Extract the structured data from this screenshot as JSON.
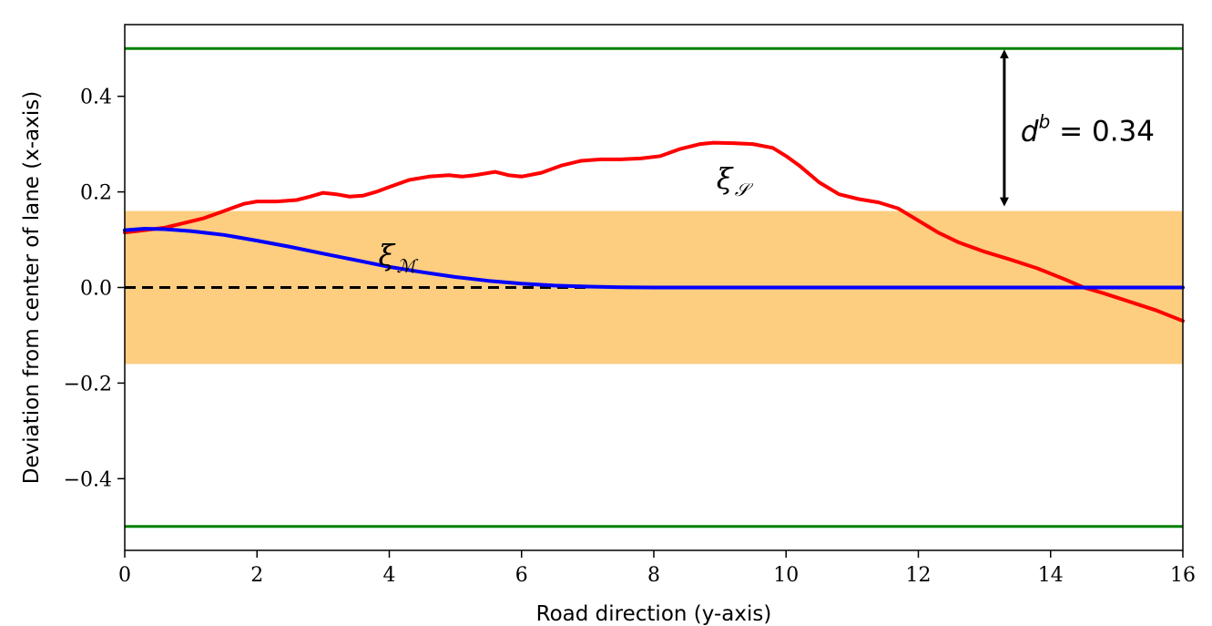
{
  "chart_data": {
    "type": "line",
    "xlabel": "Road direction (y-axis)",
    "ylabel": "Deviation from center of lane (x-axis)",
    "xlim": [
      0,
      16
    ],
    "ylim": [
      -0.55,
      0.55
    ],
    "x_ticks": [
      "0",
      "2",
      "4",
      "6",
      "8",
      "10",
      "12",
      "14",
      "16"
    ],
    "y_ticks": [
      "−0.4",
      "−0.2",
      "0.0",
      "0.2",
      "0.4"
    ],
    "x_tick_values": [
      0,
      2,
      4,
      6,
      8,
      10,
      12,
      14,
      16
    ],
    "y_tick_values": [
      -0.4,
      -0.2,
      0.0,
      0.2,
      0.4
    ],
    "grid": false,
    "band": {
      "y_min": -0.16,
      "y_max": 0.16,
      "color": "#FDCD80"
    },
    "boundaries": [
      {
        "y": 0.5,
        "color": "#008000"
      },
      {
        "y": -0.5,
        "color": "#008000"
      }
    ],
    "reference": {
      "y": 0.0,
      "x_range": [
        0,
        7
      ],
      "color": "#000000",
      "style": "dashed"
    },
    "series": [
      {
        "color": "#FF0000",
        "x": [
          0,
          0.3,
          0.6,
          0.9,
          1.2,
          1.5,
          1.8,
          2.0,
          2.3,
          2.6,
          2.8,
          3.0,
          3.2,
          3.4,
          3.6,
          3.8,
          4.0,
          4.3,
          4.6,
          4.9,
          5.1,
          5.3,
          5.6,
          5.8,
          6.0,
          6.3,
          6.6,
          6.9,
          7.2,
          7.5,
          7.8,
          8.1,
          8.4,
          8.7,
          8.9,
          9.2,
          9.5,
          9.8,
          10.0,
          10.2,
          10.5,
          10.8,
          11.1,
          11.4,
          11.7,
          12.0,
          12.3,
          12.6,
          13.0,
          13.4,
          13.8,
          14.2,
          14.5,
          14.8,
          15.2,
          15.6,
          16.0
        ],
        "y": [
          0.115,
          0.12,
          0.125,
          0.135,
          0.145,
          0.16,
          0.175,
          0.18,
          0.18,
          0.183,
          0.19,
          0.198,
          0.195,
          0.19,
          0.192,
          0.2,
          0.21,
          0.225,
          0.232,
          0.235,
          0.232,
          0.235,
          0.242,
          0.235,
          0.232,
          0.24,
          0.255,
          0.265,
          0.268,
          0.268,
          0.27,
          0.275,
          0.29,
          0.3,
          0.303,
          0.302,
          0.3,
          0.292,
          0.275,
          0.255,
          0.22,
          0.195,
          0.185,
          0.178,
          0.165,
          0.14,
          0.115,
          0.095,
          0.075,
          0.058,
          0.04,
          0.018,
          0.0,
          -0.012,
          -0.03,
          -0.048,
          -0.07
        ]
      },
      {
        "color": "#0000FF",
        "x": [
          0,
          0.3,
          0.6,
          1.0,
          1.5,
          2.0,
          2.5,
          3.0,
          3.5,
          4.0,
          4.5,
          5.0,
          5.5,
          6.0,
          6.5,
          7.0,
          7.5,
          8.0,
          9.0,
          10.0,
          12.0,
          14.0,
          16.0
        ],
        "y": [
          0.12,
          0.123,
          0.122,
          0.118,
          0.11,
          0.098,
          0.085,
          0.071,
          0.057,
          0.043,
          0.032,
          0.022,
          0.014,
          0.008,
          0.004,
          0.002,
          0.0005,
          0.0,
          0.0,
          0.0,
          0.0,
          0.0,
          0.0
        ]
      }
    ],
    "annotations": {
      "xi_s": {
        "base": "ξ",
        "sub": "𝒮",
        "x": 9.25,
        "y": 0.23
      },
      "xi_m": {
        "base": "ξ",
        "sub": "ℳ",
        "x": 4.0,
        "y": 0.07
      },
      "db": {
        "text": "d",
        "sup": "b",
        "rest": " = 0.34",
        "x": 13.3,
        "y_from": 0.5,
        "y_to": 0.16
      }
    }
  }
}
